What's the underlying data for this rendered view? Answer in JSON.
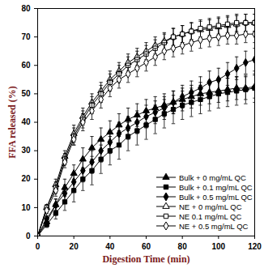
{
  "chart_data": {
    "type": "line",
    "x_label": "Digestion Time (min)",
    "y_label": "FFA released (%)",
    "x": [
      0,
      5,
      10,
      15,
      20,
      25,
      30,
      35,
      40,
      45,
      50,
      55,
      60,
      65,
      70,
      75,
      80,
      85,
      90,
      95,
      100,
      105,
      110,
      115,
      120
    ],
    "xlim": [
      0,
      120
    ],
    "xticks": [
      0,
      20,
      40,
      60,
      80,
      100,
      120
    ],
    "ylim": [
      0,
      80
    ],
    "yticks": [
      0,
      10,
      20,
      30,
      40,
      50,
      60,
      70,
      80
    ],
    "legend": "lower right",
    "series": [
      {
        "name": "Bulk + 0 mg/mL QC",
        "color": "#000000",
        "marker": "triangle",
        "values": [
          0,
          5,
          11,
          17,
          22,
          27,
          31,
          34,
          36.5,
          39,
          41,
          42.5,
          44,
          45,
          46,
          47,
          48,
          49,
          50,
          50.5,
          51,
          51.5,
          52,
          52,
          52.5
        ],
        "errors": [
          0,
          1,
          2,
          3,
          3,
          4,
          4,
          4,
          4,
          4,
          4,
          4,
          4,
          4,
          4,
          4,
          4,
          4,
          4,
          4,
          4,
          4,
          4,
          4,
          4
        ]
      },
      {
        "name": "Bulk + 0.1 mg/mL QC",
        "color": "#000000",
        "marker": "square",
        "values": [
          0,
          4,
          8,
          12,
          16,
          20,
          23,
          27,
          30,
          32,
          35,
          37,
          39,
          41,
          43,
          44.5,
          46,
          47,
          48,
          49,
          50,
          50.5,
          51,
          51.5,
          52
        ],
        "errors": [
          0,
          1,
          2,
          3,
          4,
          4,
          5,
          5,
          5,
          5,
          5,
          5,
          5,
          5,
          5,
          5,
          5,
          5,
          5,
          5,
          5,
          5,
          5,
          5,
          5
        ]
      },
      {
        "name": "Bulk + 0.5 mg/mL QC",
        "color": "#000000",
        "marker": "diamond",
        "values": [
          0,
          6,
          11,
          15,
          19,
          23,
          26,
          30,
          33,
          36,
          38,
          40,
          42,
          43.5,
          45,
          47,
          49,
          50.5,
          52,
          54,
          55,
          57,
          59,
          61,
          62
        ],
        "errors": [
          0,
          1,
          2,
          3,
          3,
          4,
          4,
          4,
          4,
          4,
          4,
          4,
          4,
          4,
          4,
          4,
          4,
          4,
          4,
          4,
          4,
          4,
          4,
          4,
          4
        ]
      },
      {
        "name": "NE + 0 mg/mL QC",
        "color": "#000000",
        "marker": "open-triangle",
        "values": [
          0,
          10,
          18,
          28,
          36,
          42,
          47,
          51,
          55,
          58,
          61,
          63,
          65,
          67,
          68.5,
          70,
          71,
          72,
          72.5,
          73,
          73.5,
          74,
          74.5,
          75,
          75
        ],
        "errors": [
          0,
          1,
          2,
          2,
          3,
          3,
          3,
          3,
          3,
          3,
          3,
          3,
          3,
          3,
          3,
          3,
          3,
          3,
          3,
          3,
          3,
          3,
          3,
          3,
          3
        ]
      },
      {
        "name": "NE 0.1 mg/mL QC",
        "color": "#000000",
        "marker": "open-square",
        "values": [
          0,
          10,
          17,
          27,
          35,
          41,
          46,
          50,
          54,
          57,
          60,
          62,
          64,
          66,
          68,
          70,
          71,
          72,
          73,
          73.5,
          74,
          74.5,
          75,
          75,
          75
        ],
        "errors": [
          0,
          1,
          2,
          2,
          3,
          3,
          3,
          3,
          3,
          3,
          3,
          3,
          3,
          3,
          3,
          3,
          3,
          3,
          3,
          3,
          3,
          3,
          3,
          3,
          3
        ]
      },
      {
        "name": "NE + 0.5 mg/mL QC",
        "color": "#000000",
        "marker": "open-diamond",
        "values": [
          0,
          9,
          16,
          26,
          34,
          40,
          44,
          48,
          52,
          55,
          57,
          59,
          61,
          63,
          65,
          66,
          67,
          68,
          69,
          69.5,
          70,
          70.5,
          70.5,
          71,
          71
        ],
        "errors": [
          0,
          1,
          2,
          2,
          2,
          3,
          3,
          3,
          3,
          3,
          3,
          3,
          3,
          3,
          3,
          3,
          3,
          3,
          3,
          3,
          3,
          3,
          3,
          3,
          3
        ]
      }
    ]
  }
}
